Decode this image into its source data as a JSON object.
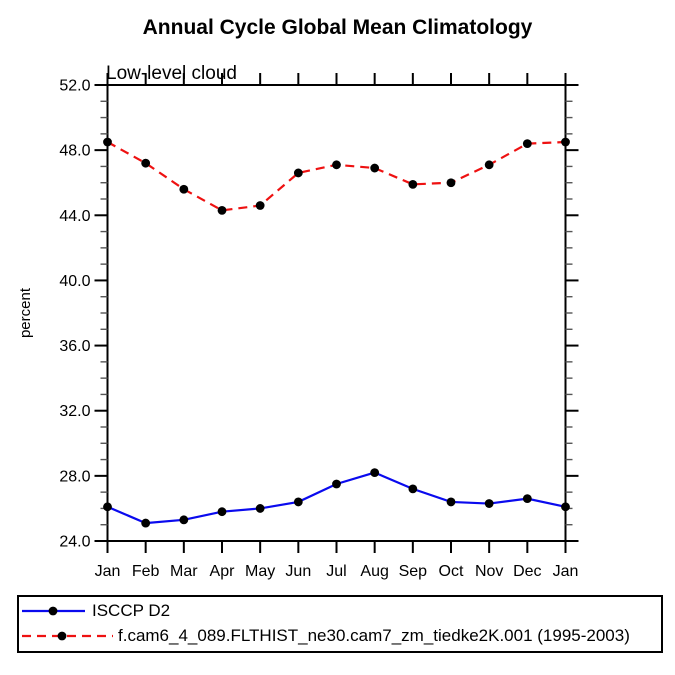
{
  "title": "Annual Cycle Global Mean Climatology",
  "subtitle": "Low-level cloud",
  "chart_data": {
    "type": "line",
    "x": [
      "Jan",
      "Feb",
      "Mar",
      "Apr",
      "May",
      "Jun",
      "Jul",
      "Aug",
      "Sep",
      "Oct",
      "Nov",
      "Dec",
      "Jan"
    ],
    "xlabel": "",
    "ylabel": "percent",
    "ylim": [
      24.0,
      52.0
    ],
    "ytick_values": [
      24,
      28,
      32,
      36,
      40,
      44,
      48,
      52
    ],
    "ytick_labels": [
      "24.0",
      "28.0",
      "32.0",
      "36.0",
      "40.0",
      "44.0",
      "48.0",
      "52.0"
    ],
    "y_minor_step": 1,
    "grid": false,
    "legend_position": "bottom",
    "series": [
      {
        "name": "ISCCP D2",
        "color": "#0a0aee",
        "style": "solid",
        "marker": "filled-circle",
        "marker_color": "#000000",
        "values": [
          26.1,
          25.1,
          25.3,
          25.8,
          26.0,
          26.4,
          27.5,
          28.2,
          27.2,
          26.4,
          26.3,
          26.6,
          26.1
        ]
      },
      {
        "name": "f.cam6_4_089.FLTHIST_ne30.cam7_zm_tiedke2K.001 (1995-2003)",
        "color": "#ee1111",
        "style": "dashed",
        "marker": "filled-circle",
        "marker_color": "#000000",
        "values": [
          48.5,
          47.2,
          45.6,
          44.3,
          44.6,
          46.6,
          47.1,
          46.9,
          45.9,
          46.0,
          47.1,
          48.4,
          48.5
        ]
      }
    ]
  },
  "legend": {
    "items": [
      {
        "label": "ISCCP D2"
      },
      {
        "label": "f.cam6_4_089.FLTHIST_ne30.cam7_zm_tiedke2K.001 (1995-2003)"
      }
    ]
  },
  "colors": {
    "axis": "#000000",
    "minor_tick": "#555555",
    "background": "#ffffff",
    "series_blue": "#0a0aee",
    "series_red": "#ee1111",
    "marker": "#000000"
  }
}
